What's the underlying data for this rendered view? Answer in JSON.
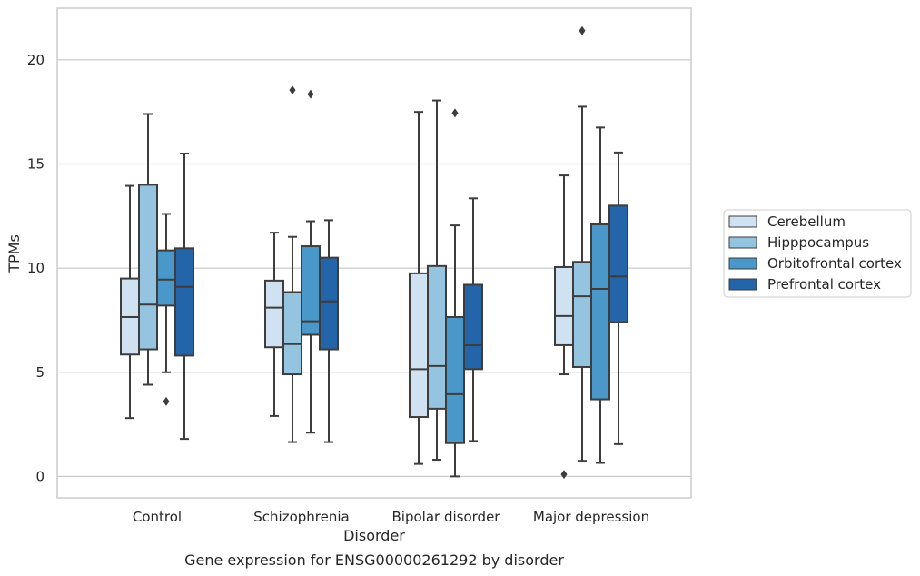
{
  "chart_data": {
    "type": "box",
    "xlabel": "Disorder",
    "ylabel": "TPMs",
    "caption": "Gene expression for ENSG00000261292 by disorder",
    "categories": [
      "Control",
      "Schizophrenia",
      "Bipolar disorder",
      "Major depression"
    ],
    "ylim": [
      -1.03,
      22.48
    ],
    "yticks": [
      0,
      5,
      10,
      15,
      20
    ],
    "grid": true,
    "legend_position": "right",
    "series": [
      {
        "name": "Cerebellum",
        "color": "#d0e1f2",
        "boxes": [
          {
            "whislo": 2.8,
            "q1": 5.85,
            "med": 7.65,
            "q3": 9.5,
            "whishi": 13.95,
            "fliers": []
          },
          {
            "whislo": 2.9,
            "q1": 6.2,
            "med": 8.1,
            "q3": 9.4,
            "whishi": 11.7,
            "fliers": []
          },
          {
            "whislo": 0.6,
            "q1": 2.85,
            "med": 5.15,
            "q3": 9.75,
            "whishi": 17.5,
            "fliers": []
          },
          {
            "whislo": 4.9,
            "q1": 6.3,
            "med": 7.7,
            "q3": 10.05,
            "whishi": 14.45,
            "fliers": [
              0.1
            ]
          }
        ]
      },
      {
        "name": "Hipppocampus",
        "color": "#94c4df",
        "boxes": [
          {
            "whislo": 4.4,
            "q1": 6.1,
            "med": 8.25,
            "q3": 14.0,
            "whishi": 17.4,
            "fliers": []
          },
          {
            "whislo": 1.65,
            "q1": 4.9,
            "med": 6.35,
            "q3": 8.85,
            "whishi": 11.5,
            "fliers": [
              18.55
            ]
          },
          {
            "whislo": 0.8,
            "q1": 3.25,
            "med": 5.3,
            "q3": 10.1,
            "whishi": 18.05,
            "fliers": []
          },
          {
            "whislo": 0.75,
            "q1": 5.25,
            "med": 8.65,
            "q3": 10.3,
            "whishi": 17.75,
            "fliers": [
              21.4
            ]
          }
        ]
      },
      {
        "name": "Orbitofrontal cortex",
        "color": "#4a98c9",
        "boxes": [
          {
            "whislo": 5.0,
            "q1": 8.2,
            "med": 9.45,
            "q3": 10.85,
            "whishi": 12.6,
            "fliers": [
              3.6
            ]
          },
          {
            "whislo": 2.1,
            "q1": 6.8,
            "med": 7.45,
            "q3": 11.05,
            "whishi": 12.25,
            "fliers": [
              18.35
            ]
          },
          {
            "whislo": 0.0,
            "q1": 1.6,
            "med": 3.95,
            "q3": 7.65,
            "whishi": 12.05,
            "fliers": [
              17.45
            ]
          },
          {
            "whislo": 0.65,
            "q1": 3.7,
            "med": 9.0,
            "q3": 12.1,
            "whishi": 16.75,
            "fliers": []
          }
        ]
      },
      {
        "name": "Prefrontal cortex",
        "color": "#2464a8",
        "boxes": [
          {
            "whislo": 1.8,
            "q1": 5.8,
            "med": 9.1,
            "q3": 10.95,
            "whishi": 15.5,
            "fliers": []
          },
          {
            "whislo": 1.65,
            "q1": 6.1,
            "med": 8.4,
            "q3": 10.5,
            "whishi": 12.3,
            "fliers": []
          },
          {
            "whislo": 1.7,
            "q1": 5.15,
            "med": 6.3,
            "q3": 9.2,
            "whishi": 13.35,
            "fliers": []
          },
          {
            "whislo": 1.55,
            "q1": 7.4,
            "med": 9.6,
            "q3": 13.0,
            "whishi": 15.55,
            "fliers": []
          }
        ]
      }
    ]
  }
}
